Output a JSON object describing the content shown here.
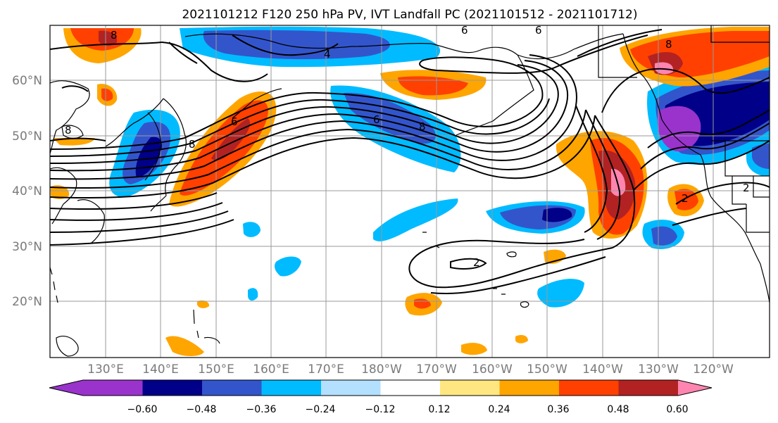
{
  "title": "2021101212 F120 250 hPa PV, IVT Landfall PC (2021101512 - 2021101712)",
  "lat_labels": [
    "60°N",
    "50°N",
    "40°N",
    "30°N",
    "20°N"
  ],
  "lon_labels": [
    "130°E",
    "140°E",
    "150°E",
    "160°E",
    "170°E",
    "180°W",
    "170°W",
    "160°W",
    "150°W",
    "140°W",
    "130°W",
    "120°W"
  ],
  "colorbar": {
    "ticks": [
      "−0.60",
      "−0.48",
      "−0.36",
      "−0.24",
      "−0.12",
      "0.12",
      "0.24",
      "0.36",
      "0.48",
      "0.60"
    ],
    "colors": [
      "#9933cc",
      "#000088",
      "#3355cc",
      "#00bbff",
      "#b3e0ff",
      "#ffffff",
      "#ffe680",
      "#ffa500",
      "#ff4000",
      "#b22222",
      "#ff85b0"
    ],
    "extend": "both"
  },
  "contour_labels": [
    "8",
    "4",
    "6",
    "8",
    "6",
    "8",
    "8",
    "6",
    "2",
    "2",
    "2",
    "8",
    "6"
  ]
}
